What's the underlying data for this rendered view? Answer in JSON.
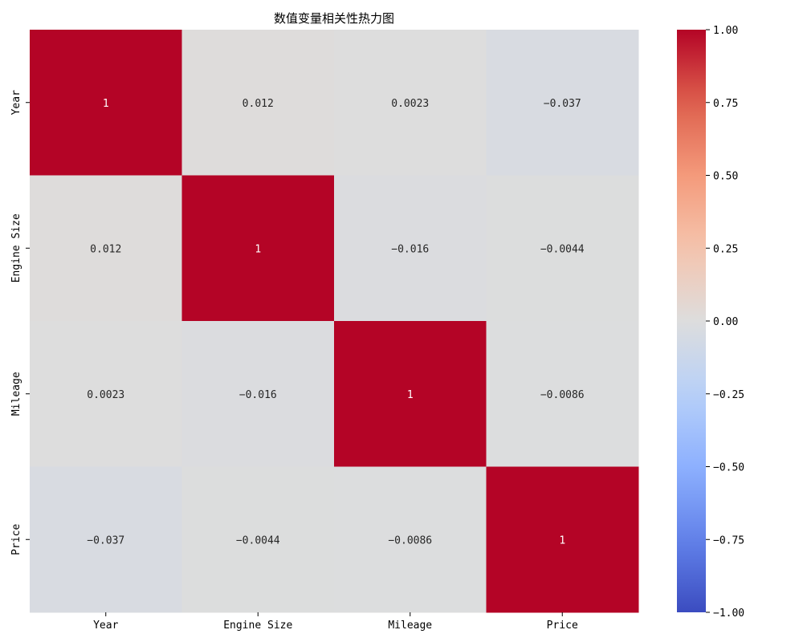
{
  "chart_data": {
    "type": "heatmap",
    "title": "数值变量相关性热力图",
    "x_categories": [
      "Year",
      "Engine Size",
      "Mileage",
      "Price"
    ],
    "y_categories": [
      "Year",
      "Engine Size",
      "Mileage",
      "Price"
    ],
    "values": [
      [
        1,
        0.012,
        0.0023,
        -0.037
      ],
      [
        0.012,
        1,
        -0.016,
        -0.0044
      ],
      [
        0.0023,
        -0.016,
        1,
        -0.0086
      ],
      [
        -0.037,
        -0.0044,
        -0.0086,
        1
      ]
    ],
    "annotations": [
      [
        "1",
        "0.012",
        "0.0023",
        "−0.037"
      ],
      [
        "0.012",
        "1",
        "−0.016",
        "−0.0044"
      ],
      [
        "0.0023",
        "−0.016",
        "1",
        "−0.0086"
      ],
      [
        "−0.037",
        "−0.0044",
        "−0.0086",
        "1"
      ]
    ],
    "colormap": "coolwarm",
    "vmin": -1,
    "vmax": 1,
    "colorbar_ticks": [
      1.0,
      0.75,
      0.5,
      0.25,
      0.0,
      -0.25,
      -0.5,
      -0.75,
      -1.0
    ],
    "colorbar_tick_labels": [
      "1.00",
      "0.75",
      "0.50",
      "0.25",
      "0.00",
      "−0.25",
      "−0.50",
      "−0.75",
      "−1.00"
    ],
    "colors": {
      "min": "#3b4cc0",
      "mid": "#dddddd",
      "max": "#b40426"
    }
  }
}
